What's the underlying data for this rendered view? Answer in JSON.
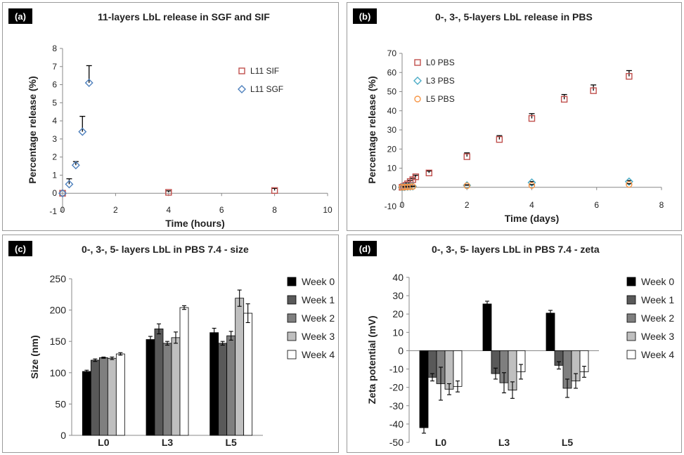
{
  "chart_data": [
    {
      "panel_label": "(a)",
      "type": "scatter",
      "title": "11-layers LbL release in SGF and SIF",
      "xlabel": "Time (hours)",
      "ylabel": "Percentage release (%)",
      "xlim": [
        0,
        10
      ],
      "ylim": [
        -1,
        8
      ],
      "xticks": [
        "0",
        "2",
        "4",
        "6",
        "8",
        "10"
      ],
      "yticks": [
        "-1",
        "0",
        "1",
        "2",
        "3",
        "4",
        "5",
        "6",
        "7",
        "8"
      ],
      "legend_position": "top-right",
      "series": [
        {
          "name": "L11 SIF",
          "marker": "square",
          "color": "#c0504d",
          "x": [
            0,
            4,
            8
          ],
          "y": [
            0,
            0.05,
            0.15
          ],
          "err": [
            0,
            0.08,
            0.12
          ]
        },
        {
          "name": "L11 SGF",
          "marker": "diamond",
          "color": "#4f81bd",
          "x": [
            0,
            0.25,
            0.5,
            0.75,
            1
          ],
          "y": [
            0,
            0.5,
            1.55,
            3.4,
            6.1
          ],
          "err": [
            0,
            0.3,
            0.2,
            0.85,
            0.95
          ]
        }
      ]
    },
    {
      "panel_label": "(b)",
      "type": "scatter",
      "title": "0-, 3-, 5-layers LbL release in PBS",
      "xlabel": "Time (days)",
      "ylabel": "Percentage release (%)",
      "xlim": [
        0,
        8
      ],
      "ylim": [
        -10,
        70
      ],
      "xticks": [
        "0",
        "2",
        "4",
        "6",
        "8"
      ],
      "yticks": [
        "-10",
        "0",
        "10",
        "20",
        "30",
        "40",
        "50",
        "60",
        "70"
      ],
      "legend_position": "top-left",
      "series": [
        {
          "name": "L0 PBS",
          "marker": "square",
          "color": "#c0504d",
          "x": [
            0,
            0.04,
            0.08,
            0.125,
            0.17,
            0.25,
            0.33,
            0.42,
            0.83,
            2,
            3,
            4,
            5,
            5.9,
            7
          ],
          "y": [
            0,
            0.3,
            0.6,
            1,
            1.8,
            3,
            4,
            5.5,
            7.5,
            16,
            25,
            36,
            46,
            50.5,
            58
          ],
          "err": [
            0,
            0.2,
            0.3,
            0.4,
            0.5,
            0.6,
            0.7,
            0.8,
            1,
            2,
            2,
            2.5,
            2.5,
            3,
            3
          ]
        },
        {
          "name": "L3 PBS",
          "marker": "diamond",
          "color": "#4bacc6",
          "x": [
            0,
            0.08,
            0.17,
            0.25,
            0.33,
            2,
            4,
            7
          ],
          "y": [
            0,
            0.2,
            0.3,
            0.4,
            0.5,
            1,
            2.5,
            3
          ],
          "err": [
            0,
            0.1,
            0.1,
            0.1,
            0.2,
            0.3,
            0.5,
            0.5
          ]
        },
        {
          "name": "L5 PBS",
          "marker": "circle",
          "color": "#f79646",
          "x": [
            0,
            0.08,
            0.17,
            0.25,
            0.33,
            2,
            4,
            7
          ],
          "y": [
            0,
            0.1,
            0.2,
            0.3,
            0.4,
            0.8,
            1,
            1.5
          ],
          "err": [
            0,
            0.1,
            0.1,
            0.1,
            0.1,
            0.3,
            0.4,
            0.4
          ]
        }
      ]
    },
    {
      "panel_label": "(c)",
      "type": "bar",
      "title": "0-, 3-, 5- layers LbL in PBS 7.4 - size",
      "xlabel": "",
      "ylabel": "Size (nm)",
      "ylim": [
        0,
        250
      ],
      "yticks": [
        "0",
        "50",
        "100",
        "150",
        "200",
        "250"
      ],
      "categories": [
        "L0",
        "L3",
        "L5"
      ],
      "legend_position": "right",
      "series": [
        {
          "name": "Week 0",
          "color": "#000000",
          "values": [
            102,
            153,
            164
          ],
          "err": [
            2,
            5,
            7
          ]
        },
        {
          "name": "Week 1",
          "color": "#595959",
          "values": [
            120,
            170,
            147
          ],
          "err": [
            2,
            8,
            3
          ]
        },
        {
          "name": "Week 2",
          "color": "#7f7f7f",
          "values": [
            124,
            147,
            159
          ],
          "err": [
            1,
            3,
            7
          ]
        },
        {
          "name": "Week 3",
          "color": "#bfbfbf",
          "values": [
            123,
            156,
            219
          ],
          "err": [
            2,
            9,
            13
          ]
        },
        {
          "name": "Week 4",
          "color": "#ffffff",
          "values": [
            130,
            204,
            195
          ],
          "err": [
            2,
            3,
            15
          ]
        }
      ]
    },
    {
      "panel_label": "(d)",
      "type": "bar",
      "title": "0-, 3-, 5- layers LbL in PBS 7.4 - zeta",
      "xlabel": "",
      "ylabel": "Zeta potential (mV)",
      "ylim": [
        -50,
        40
      ],
      "yticks": [
        "-50",
        "-40",
        "-30",
        "-20",
        "-10",
        "0",
        "10",
        "20",
        "30",
        "40"
      ],
      "categories": [
        "L0",
        "L3",
        "L5"
      ],
      "legend_position": "right",
      "series": [
        {
          "name": "Week 0",
          "color": "#000000",
          "values": [
            -42,
            25.5,
            20.5
          ],
          "err": [
            3,
            1.5,
            1.5
          ]
        },
        {
          "name": "Week 1",
          "color": "#595959",
          "values": [
            -14.5,
            -12.5,
            -8
          ],
          "err": [
            2,
            3,
            2
          ]
        },
        {
          "name": "Week 2",
          "color": "#7f7f7f",
          "values": [
            -18,
            -17.5,
            -20.5
          ],
          "err": [
            9,
            5.5,
            5
          ]
        },
        {
          "name": "Week 3",
          "color": "#bfbfbf",
          "values": [
            -21,
            -21.5,
            -16.5
          ],
          "err": [
            3,
            4.5,
            4
          ]
        },
        {
          "name": "Week 4",
          "color": "#ffffff",
          "values": [
            -19.5,
            -11.5,
            -11.5
          ],
          "err": [
            3,
            4,
            3
          ]
        }
      ]
    }
  ]
}
